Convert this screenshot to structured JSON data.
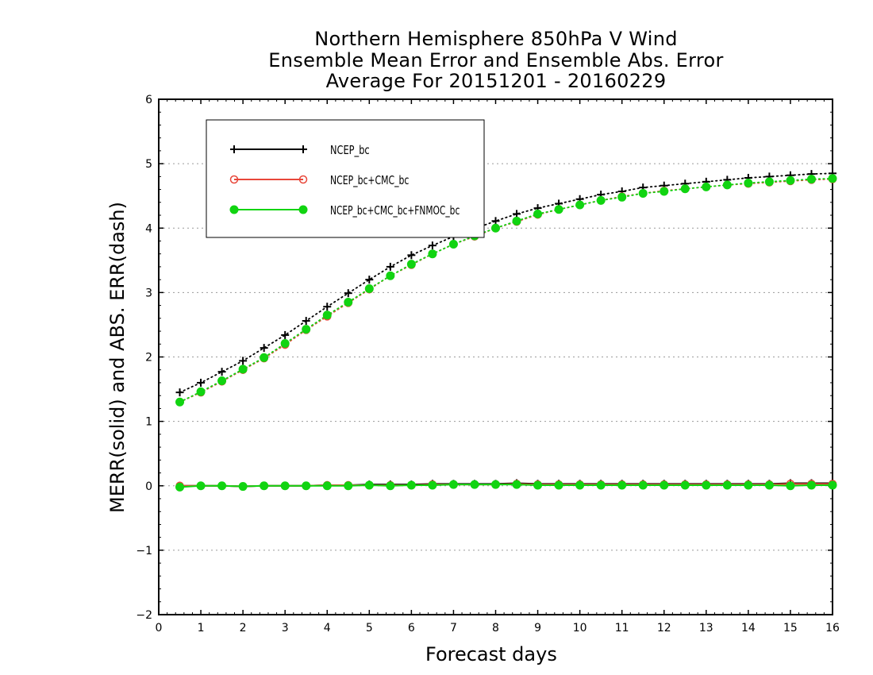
{
  "chart_data": {
    "type": "line",
    "title_lines": [
      "Northern Hemisphere 850hPa V Wind",
      "Ensemble Mean Error and Ensemble Abs. Error",
      "Average For 20151201 - 20160229"
    ],
    "xlabel": "Forecast days",
    "ylabel": "MERR(solid) and ABS. ERR(dash)",
    "xlim": [
      0,
      16
    ],
    "ylim": [
      -2,
      6
    ],
    "xticks": [
      "0",
      "1",
      "2",
      "3",
      "4",
      "5",
      "6",
      "7",
      "8",
      "9",
      "10",
      "11",
      "12",
      "13",
      "14",
      "15",
      "16"
    ],
    "yticks": [
      "−2",
      "−1",
      "0",
      "1",
      "2",
      "3",
      "4",
      "5",
      "6"
    ],
    "grid": "horizontal dotted",
    "legend_position": "top-left",
    "x": [
      0.5,
      1,
      1.5,
      2,
      2.5,
      3,
      3.5,
      4,
      4.5,
      5,
      5.5,
      6,
      6.5,
      7,
      7.5,
      8,
      8.5,
      9,
      9.5,
      10,
      10.5,
      11,
      11.5,
      12,
      12.5,
      13,
      13.5,
      14,
      14.5,
      15,
      15.5,
      16
    ],
    "series": [
      {
        "name": "NCEP_bc",
        "color": "#000000",
        "marker": "plus",
        "abs_err": [
          1.45,
          1.6,
          1.77,
          1.94,
          2.14,
          2.34,
          2.56,
          2.78,
          2.99,
          3.2,
          3.4,
          3.58,
          3.73,
          3.87,
          3.99,
          4.11,
          4.22,
          4.31,
          4.38,
          4.45,
          4.52,
          4.57,
          4.63,
          4.66,
          4.69,
          4.72,
          4.75,
          4.78,
          4.8,
          4.82,
          4.84,
          4.85
        ],
        "mean_err": [
          0.0,
          0.0,
          0.0,
          -0.01,
          0.0,
          0.0,
          0.0,
          0.01,
          0.01,
          0.02,
          0.02,
          0.02,
          0.03,
          0.03,
          0.03,
          0.03,
          0.04,
          0.03,
          0.03,
          0.03,
          0.03,
          0.03,
          0.03,
          0.03,
          0.03,
          0.03,
          0.03,
          0.03,
          0.03,
          0.04,
          0.04,
          0.04
        ]
      },
      {
        "name": "NCEP_bc+CMC_bc",
        "color": "#e8473a",
        "marker": "open-circle",
        "abs_err": [
          1.3,
          1.45,
          1.62,
          1.8,
          1.98,
          2.19,
          2.42,
          2.63,
          2.84,
          3.05,
          3.26,
          3.43,
          3.6,
          3.75,
          3.87,
          4.0,
          4.1,
          4.21,
          4.29,
          4.36,
          4.43,
          4.49,
          4.54,
          4.58,
          4.61,
          4.64,
          4.67,
          4.69,
          4.71,
          4.73,
          4.75,
          4.76
        ],
        "mean_err": [
          0.0,
          0.0,
          0.0,
          -0.01,
          0.0,
          0.0,
          0.0,
          0.01,
          0.01,
          0.01,
          0.01,
          0.01,
          0.02,
          0.02,
          0.02,
          0.02,
          0.03,
          0.02,
          0.02,
          0.02,
          0.02,
          0.02,
          0.02,
          0.02,
          0.02,
          0.02,
          0.02,
          0.02,
          0.02,
          0.03,
          0.03,
          0.03
        ]
      },
      {
        "name": "NCEP_bc+CMC_bc+FNMOC_bc",
        "color": "#11d411",
        "marker": "filled-circle",
        "abs_err": [
          1.3,
          1.46,
          1.63,
          1.81,
          1.99,
          2.21,
          2.43,
          2.65,
          2.85,
          3.06,
          3.26,
          3.44,
          3.6,
          3.75,
          3.88,
          4.0,
          4.11,
          4.22,
          4.29,
          4.36,
          4.43,
          4.48,
          4.54,
          4.57,
          4.61,
          4.64,
          4.67,
          4.7,
          4.72,
          4.74,
          4.76,
          4.77
        ],
        "mean_err": [
          -0.02,
          0.0,
          0.0,
          -0.01,
          0.0,
          0.0,
          0.0,
          0.0,
          0.0,
          0.01,
          0.0,
          0.01,
          0.01,
          0.02,
          0.02,
          0.02,
          0.02,
          0.01,
          0.01,
          0.01,
          0.01,
          0.01,
          0.01,
          0.01,
          0.01,
          0.01,
          0.01,
          0.01,
          0.01,
          0.0,
          0.01,
          0.01
        ]
      }
    ]
  }
}
